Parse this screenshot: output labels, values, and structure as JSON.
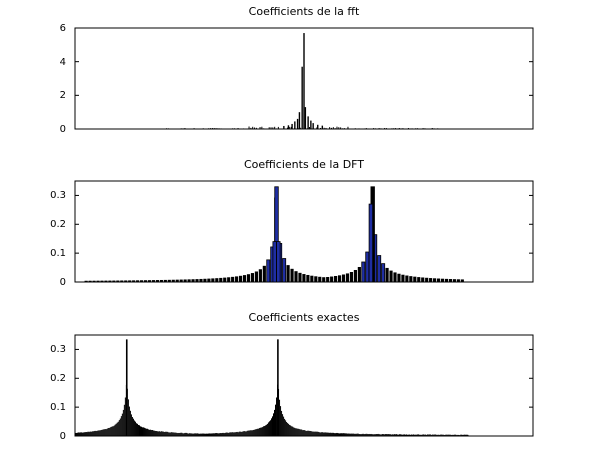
{
  "chart_data": [
    {
      "type": "bar",
      "title": "Coefficients de la fft",
      "xlabel": "",
      "ylabel": "",
      "ylim": [
        0,
        6
      ],
      "yticks": [
        "0",
        "2",
        "4",
        "6"
      ],
      "bar_color": "#000000",
      "peaks": [
        {
          "x": 0.5,
          "value": 5.7
        },
        {
          "x": 0.496,
          "value": 3.7
        },
        {
          "x": 0.503,
          "value": 1.3
        },
        {
          "x": 0.49,
          "value": 1.0
        },
        {
          "x": 0.509,
          "value": 0.75
        },
        {
          "x": 0.486,
          "value": 0.6
        },
        {
          "x": 0.515,
          "value": 0.5
        },
        {
          "x": 0.48,
          "value": 0.45
        },
        {
          "x": 0.52,
          "value": 0.35
        },
        {
          "x": 0.474,
          "value": 0.3
        },
        {
          "x": 0.53,
          "value": 0.25
        },
        {
          "x": 0.466,
          "value": 0.22
        },
        {
          "x": 0.54,
          "value": 0.2
        },
        {
          "x": 0.456,
          "value": 0.18
        }
      ],
      "noise": {
        "x_range": [
          0.0,
          1.0
        ],
        "level": 0.06,
        "step": 0.004
      }
    },
    {
      "type": "bar",
      "title": "Coefficients de la DFT",
      "xlabel": "",
      "ylabel": "",
      "ylim": [
        0,
        0.35
      ],
      "yticks": [
        "0",
        "0.1",
        "0.2",
        "0.3"
      ],
      "bar_color": "#000000",
      "highlight_color": "#1f2ea3",
      "x_start": 0.02,
      "x_end": 0.85,
      "n_bars": 96,
      "peak_positions": [
        0.44,
        0.65
      ],
      "peaks": [
        {
          "x": 0.44,
          "value": 0.33,
          "highlight": true
        },
        {
          "x": 0.436,
          "value": 0.14,
          "highlight": true
        },
        {
          "x": 0.444,
          "value": 0.14,
          "highlight": true
        },
        {
          "x": 0.65,
          "value": 0.33,
          "highlight": false
        },
        {
          "x": 0.646,
          "value": 0.27,
          "highlight": true
        }
      ]
    },
    {
      "type": "bar",
      "title": "Coefficients exactes",
      "xlabel": "",
      "ylabel": "",
      "ylim": [
        0,
        0.35
      ],
      "yticks": [
        "0",
        "0.1",
        "0.2",
        "0.3"
      ],
      "bar_color": "#000000",
      "x_end": 0.86,
      "peak_positions": [
        0.113,
        0.443
      ],
      "peak_value": 0.335
    }
  ]
}
